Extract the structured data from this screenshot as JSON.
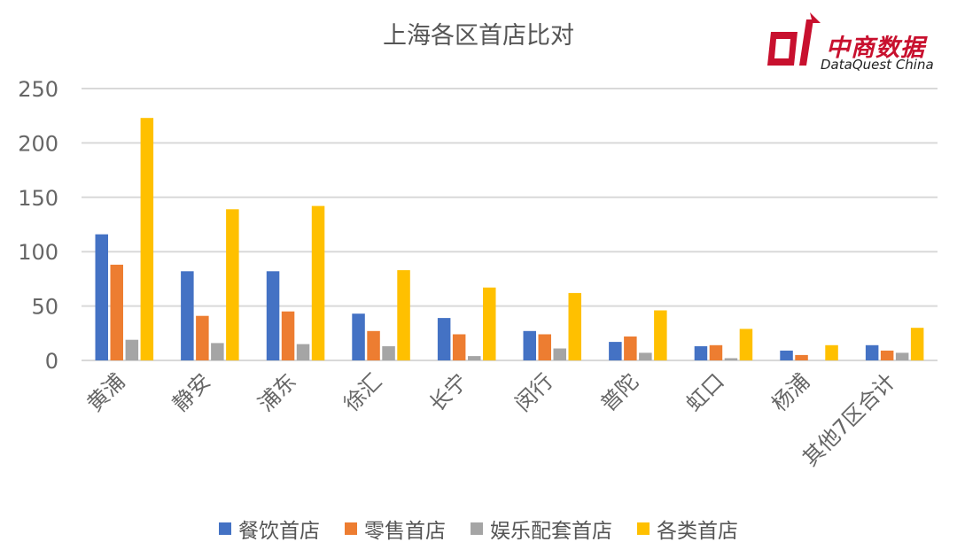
{
  "chart_data": {
    "type": "bar",
    "title": "上海各区首店比对",
    "categories": [
      "黄浦",
      "静安",
      "浦东",
      "徐汇",
      "长宁",
      "闵行",
      "普陀",
      "虹口",
      "杨浦",
      "其他7区合计"
    ],
    "series": [
      {
        "name": "餐饮首店",
        "color": "#4472c4",
        "values": [
          116,
          82,
          82,
          43,
          39,
          27,
          17,
          13,
          9,
          14
        ]
      },
      {
        "name": "零售首店",
        "color": "#ed7d31",
        "values": [
          88,
          41,
          45,
          27,
          24,
          24,
          22,
          14,
          5,
          9
        ]
      },
      {
        "name": "娱乐配套首店",
        "color": "#a5a5a5",
        "values": [
          19,
          16,
          15,
          13,
          4,
          11,
          7,
          2,
          0,
          7
        ]
      },
      {
        "name": "各类首店",
        "color": "#ffc000",
        "values": [
          223,
          139,
          142,
          83,
          67,
          62,
          46,
          29,
          14,
          30
        ]
      }
    ],
    "ylim": [
      0,
      250
    ],
    "yticks": [
      0,
      50,
      100,
      150,
      200,
      250
    ],
    "grid": true,
    "legend": "bottom"
  },
  "logo": {
    "name_cn": "中商数据",
    "name_en": "DataQuest China",
    "color": "#c8102e"
  }
}
